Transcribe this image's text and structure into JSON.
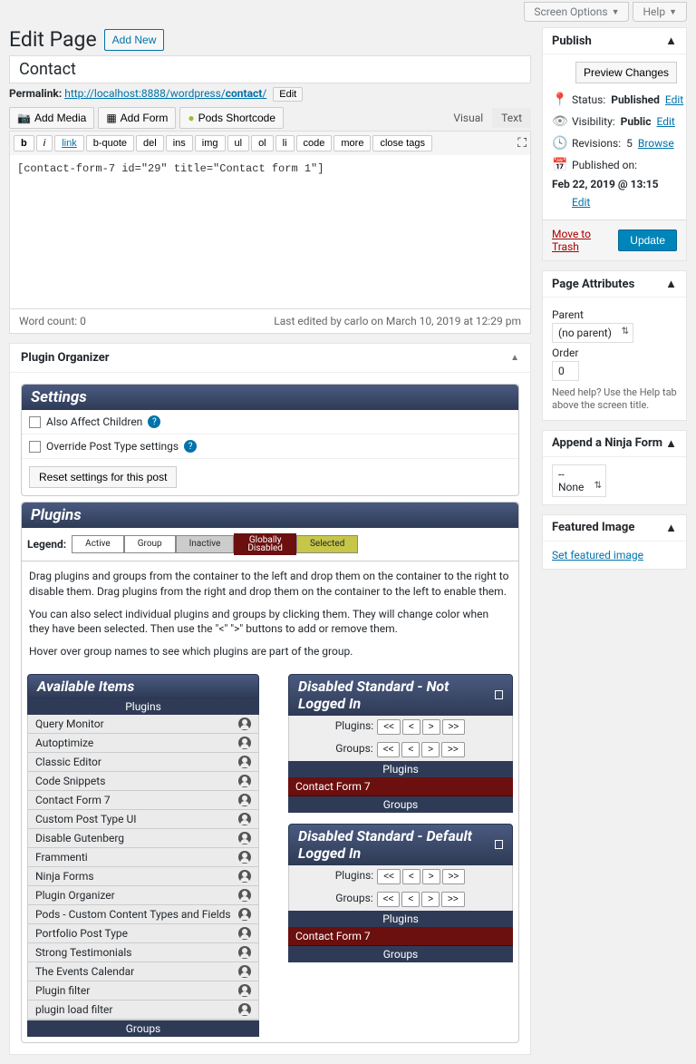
{
  "topbar": {
    "screen": "Screen Options",
    "help": "Help"
  },
  "heading": "Edit Page",
  "addnew": "Add New",
  "title": "Contact",
  "permalink": {
    "label": "Permalink:",
    "base": "http://localhost:8888/wordpress/",
    "slug": "contact",
    "edit": "Edit"
  },
  "media": {
    "add_media": "Add Media",
    "add_form": "Add Form",
    "pods": "Pods Shortcode"
  },
  "editor_tabs": {
    "visual": "Visual",
    "text": "Text"
  },
  "quicktags": [
    "b",
    "i",
    "link",
    "b-quote",
    "del",
    "ins",
    "img",
    "ul",
    "ol",
    "li",
    "code",
    "more",
    "close tags"
  ],
  "content": "[contact-form-7 id=\"29\" title=\"Contact form 1\"]",
  "status": {
    "wordcount": "Word count: 0",
    "lastedit": "Last edited by carlo on March 10, 2019 at 12:29 pm"
  },
  "plugin_org": {
    "title": "Plugin Organizer",
    "settings": {
      "hdr": "Settings",
      "affect": "Also Affect Children",
      "override": "Override Post Type settings",
      "reset": "Reset settings for this post"
    },
    "plugins_hdr": "Plugins",
    "legend": {
      "label": "Legend:",
      "active": "Active",
      "group": "Group",
      "inactive": "Inactive",
      "disabled": "Globally\nDisabled",
      "selected": "Selected"
    },
    "instr1": "Drag plugins and groups from the container to the left and drop them on the container to the right to disable them. Drag plugins from the right and drop them on the container to the left to enable them.",
    "instr2": "You can also select individual plugins and groups by clicking them. They will change color when they have been selected. Then use the \"<\" \">\" buttons to add or remove them.",
    "instr3": "Hover over group names to see which plugins are part of the group.",
    "avail": "Available Items",
    "plugins_sub": "Plugins",
    "groups_sub": "Groups",
    "plugin_list": [
      "Query Monitor",
      "Autoptimize",
      "Classic Editor",
      "Code Snippets",
      "Contact Form 7",
      "Custom Post Type UI",
      "Disable Gutenberg",
      "Frammenti",
      "Ninja Forms",
      "Plugin Organizer",
      "Pods - Custom Content Types and Fields",
      "Portfolio Post Type",
      "Strong Testimonials",
      "The Events Calendar",
      "Plugin filter",
      "plugin load filter"
    ],
    "dis1": "Disabled Standard - Not Logged In",
    "dis2": "Disabled Standard - Default Logged In",
    "plugins_lbl": "Plugins:",
    "groups_lbl": "Groups:",
    "cf7": "Contact Form 7"
  },
  "publish": {
    "title": "Publish",
    "preview": "Preview Changes",
    "status": "Status:",
    "status_v": "Published",
    "edit": "Edit",
    "visibility": "Visibility:",
    "vis_v": "Public",
    "revisions": "Revisions:",
    "rev_v": "5",
    "browse": "Browse",
    "published": "Published on:",
    "pub_v": "Feb 22, 2019 @ 13:15",
    "trash": "Move to Trash",
    "update": "Update"
  },
  "page_attr": {
    "title": "Page Attributes",
    "parent": "Parent",
    "parent_v": "(no parent)",
    "order": "Order",
    "order_v": "0",
    "help": "Need help? Use the Help tab above the screen title."
  },
  "ninja": {
    "title": "Append a Ninja Form",
    "none": "-- None"
  },
  "featured": {
    "title": "Featured Image",
    "set": "Set featured image"
  }
}
